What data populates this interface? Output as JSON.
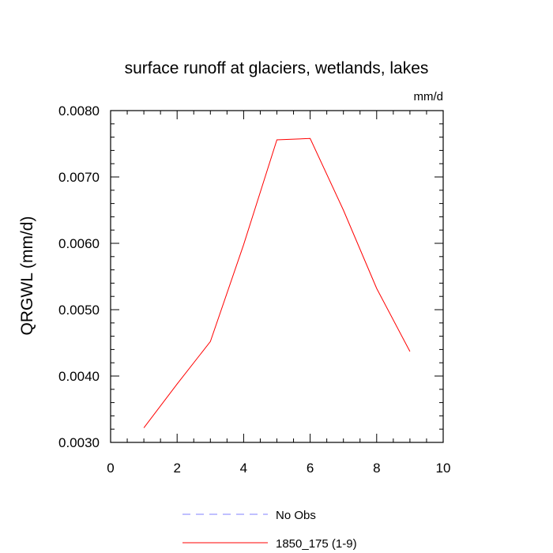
{
  "chart_data": {
    "type": "line",
    "title": "surface runoff at glaciers, wetlands, lakes",
    "units_label": "mm/d",
    "ylabel": "QRGWL  (mm/d)",
    "xlabel": "",
    "xlim": [
      0,
      10
    ],
    "ylim": [
      0.003,
      0.008
    ],
    "x_ticks": [
      0,
      2,
      4,
      6,
      8,
      10
    ],
    "x_tick_labels": [
      "0",
      "2",
      "4",
      "6",
      "8",
      "10"
    ],
    "y_ticks": [
      0.003,
      0.004,
      0.005,
      0.006,
      0.007,
      0.008
    ],
    "y_tick_labels": [
      "0.0030",
      "0.0040",
      "0.0050",
      "0.0060",
      "0.0070",
      "0.0080"
    ],
    "grid": false,
    "legend_position": "bottom-center",
    "series": [
      {
        "name": "No Obs",
        "color": "#8080ff",
        "dash": "dashed",
        "x": [],
        "y": []
      },
      {
        "name": "1850_175 (1-9)",
        "color": "#ff0000",
        "dash": "solid",
        "x": [
          1,
          2,
          3,
          4,
          5,
          6,
          7,
          8,
          9
        ],
        "y": [
          0.00322,
          0.00388,
          0.00452,
          0.00598,
          0.00756,
          0.00758,
          0.0065,
          0.00532,
          0.00437
        ]
      }
    ]
  }
}
